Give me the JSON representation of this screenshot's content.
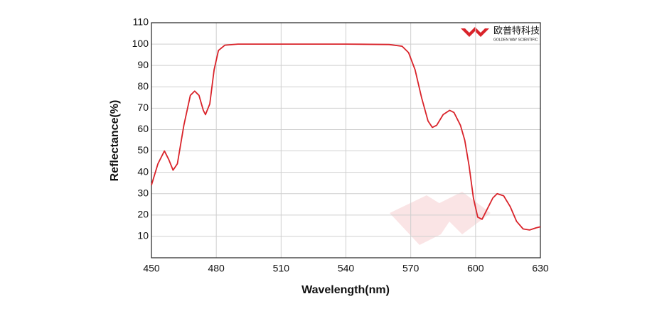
{
  "chart_data": {
    "type": "line",
    "xlabel": "Wavelength(nm)",
    "ylabel": "Reflectance(%)",
    "logo": {
      "name": "欧普特科技",
      "tagline": "GOLDEN WAY SCIENTIFIC"
    },
    "x": [
      450,
      453,
      456,
      458,
      460,
      462,
      465,
      468,
      470,
      472,
      474,
      475,
      477,
      479,
      481,
      484,
      490,
      510,
      540,
      560,
      566,
      569,
      572,
      575,
      578,
      580,
      582,
      585,
      588,
      590,
      593,
      595,
      597,
      599,
      601,
      603,
      605,
      608,
      610,
      613,
      616,
      619,
      622,
      625,
      628,
      630
    ],
    "series": [
      {
        "name": "Reflectance",
        "color": "#d9232a",
        "values": [
          34,
          44,
          50,
          46,
          41,
          44,
          62,
          76,
          78,
          76,
          69,
          67,
          72,
          88,
          97,
          99.5,
          100,
          100,
          100,
          99.8,
          99,
          96,
          88,
          75,
          64,
          61,
          62,
          67,
          69,
          68,
          62,
          55,
          43,
          28,
          19,
          18,
          22,
          28,
          30,
          29,
          24,
          17,
          13.5,
          13,
          14,
          14.5
        ]
      }
    ],
    "xlim": [
      450,
      630
    ],
    "xticks": [
      450,
      480,
      510,
      540,
      570,
      600,
      630
    ],
    "ylim": [
      0,
      110
    ],
    "yticks": [
      10,
      20,
      30,
      40,
      50,
      60,
      70,
      80,
      90,
      100,
      110
    ],
    "grid": true
  }
}
